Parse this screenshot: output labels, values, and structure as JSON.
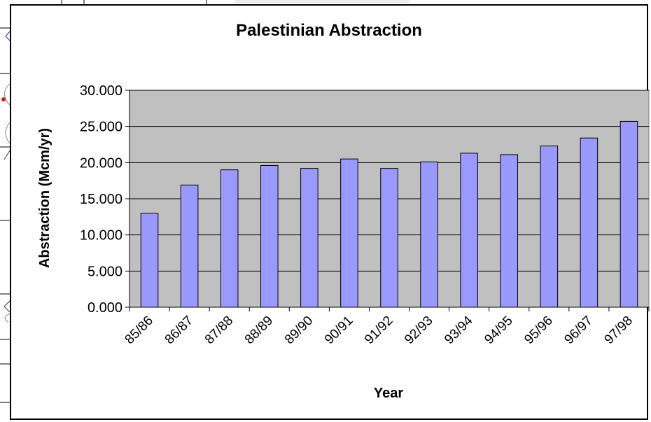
{
  "chart_data": {
    "type": "bar",
    "title": "Palestinian Abstraction",
    "xlabel": "Year",
    "ylabel": "Abstraction (Mcm/yr)",
    "categories": [
      "85/86",
      "86/87",
      "87/88",
      "88/89",
      "89/90",
      "90/91",
      "91/92",
      "92/93",
      "93/94",
      "94/95",
      "95/96",
      "96/97",
      "97/98"
    ],
    "values": [
      13.0,
      16.9,
      19.0,
      19.6,
      19.2,
      20.5,
      19.2,
      20.1,
      21.3,
      21.1,
      22.3,
      23.4,
      25.7
    ],
    "ylim": [
      0,
      30
    ],
    "yticks": [
      "0.000",
      "5.000",
      "10.000",
      "15.000",
      "20.000",
      "25.000",
      "30.000"
    ],
    "ytick_values": [
      0,
      5,
      10,
      15,
      20,
      25,
      30
    ],
    "grid": true,
    "legend": "none",
    "colors": {
      "bar_fill": "#9999ff",
      "bar_stroke": "#000000",
      "plot_background": "#c0c0c0",
      "grid": "#000000"
    }
  }
}
